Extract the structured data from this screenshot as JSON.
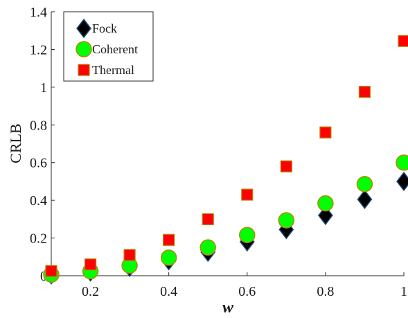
{
  "chart_data": {
    "type": "scatter",
    "title": "",
    "xlabel": "w",
    "ylabel": "CRLB",
    "xlim": [
      0.1,
      1.0
    ],
    "ylim": [
      0,
      1.4
    ],
    "xticks": [
      0.2,
      0.4,
      0.6,
      0.8,
      1.0
    ],
    "xtick_labels": [
      "0.2",
      "0.4",
      "0.6",
      "0.8",
      "1"
    ],
    "yticks": [
      0,
      0.2,
      0.4,
      0.6,
      0.8,
      1.0,
      1.2,
      1.4
    ],
    "ytick_labels": [
      "0",
      "0.2",
      "0.4",
      "0.6",
      "0.8",
      "1",
      "1.2",
      "1.4"
    ],
    "grid": false,
    "legend_position": "top-left",
    "x": [
      0.1,
      0.2,
      0.3,
      0.4,
      0.5,
      0.6,
      0.7,
      0.8,
      0.9,
      1.0
    ],
    "series": [
      {
        "name": "Fock",
        "marker": "diamond",
        "fill": "#000000",
        "stroke": "#1f4e79",
        "values": [
          0.005,
          0.02,
          0.045,
          0.08,
          0.125,
          0.18,
          0.245,
          0.32,
          0.405,
          0.5
        ]
      },
      {
        "name": "Coherent",
        "marker": "circle",
        "fill": "#00ff00",
        "stroke": "#b8860b",
        "values": [
          0.006,
          0.024,
          0.054,
          0.096,
          0.15,
          0.216,
          0.294,
          0.384,
          0.486,
          0.6
        ]
      },
      {
        "name": "Thermal",
        "marker": "square",
        "fill": "#ff0000",
        "stroke": "#b8860b",
        "values": [
          0.025,
          0.06,
          0.11,
          0.19,
          0.3,
          0.43,
          0.58,
          0.76,
          0.975,
          1.245
        ]
      }
    ]
  }
}
